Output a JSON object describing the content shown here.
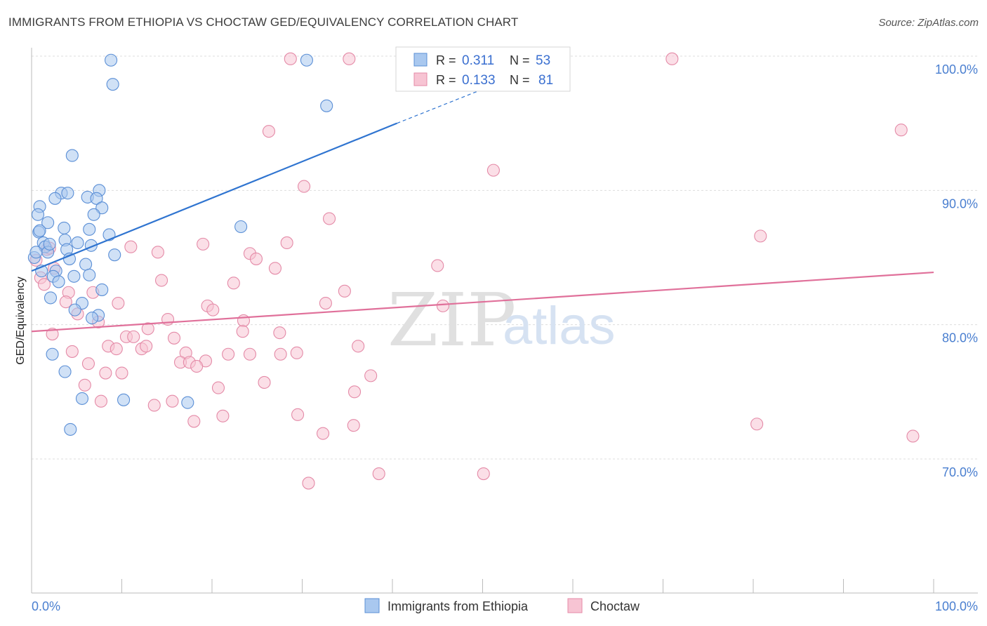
{
  "title": "IMMIGRANTS FROM ETHIOPIA VS CHOCTAW GED/EQUIVALENCY CORRELATION CHART",
  "source": "Source: ZipAtlas.com",
  "watermark": {
    "part1": "ZIP",
    "part2": "atlas"
  },
  "colors": {
    "blue_fill": "#a9c8ef",
    "blue_stroke": "#5b8fd6",
    "blue_line": "#2f74d0",
    "pink_fill": "#f7c4d3",
    "pink_stroke": "#e48aa7",
    "pink_line": "#e0709a",
    "axis_text": "#4a7fd0",
    "grid": "#dddddd"
  },
  "legend_box": {
    "rows": [
      {
        "r_label": "R = ",
        "r_value": "0.311",
        "n_label": "N = ",
        "n_value": "53"
      },
      {
        "r_label": "R = ",
        "r_value": "0.133",
        "n_label": "N = ",
        "n_value": "81"
      }
    ]
  },
  "chart_data": {
    "type": "scatter",
    "title": "IMMIGRANTS FROM ETHIOPIA VS CHOCTAW GED/EQUIVALENCY CORRELATION CHART",
    "xlabel": "",
    "ylabel": "GED/Equivalency",
    "xlim": [
      0,
      100
    ],
    "ylim": [
      60,
      100
    ],
    "x_tick_labels": [
      "0.0%",
      "100.0%"
    ],
    "y_ticks": [
      70,
      80,
      90,
      100
    ],
    "y_tick_labels": [
      "70.0%",
      "80.0%",
      "90.0%",
      "100.0%"
    ],
    "grid": true,
    "legend_position": "bottom",
    "series": [
      {
        "name": "Immigrants from Ethiopia",
        "R": 0.311,
        "N": 53,
        "trend": {
          "x": [
            0,
            40.5
          ],
          "y": [
            84.0,
            95.0
          ],
          "dashed_to": [
            51,
            97.8
          ]
        },
        "points": [
          [
            8.8,
            99.7
          ],
          [
            30.5,
            99.7
          ],
          [
            9.0,
            97.9
          ],
          [
            32.7,
            96.3
          ],
          [
            4.5,
            92.6
          ],
          [
            3.3,
            89.8
          ],
          [
            4.0,
            89.8
          ],
          [
            7.5,
            90.0
          ],
          [
            6.2,
            89.5
          ],
          [
            2.6,
            89.4
          ],
          [
            7.2,
            89.4
          ],
          [
            0.9,
            88.8
          ],
          [
            7.8,
            88.7
          ],
          [
            0.7,
            88.2
          ],
          [
            6.9,
            88.2
          ],
          [
            1.8,
            87.6
          ],
          [
            3.6,
            87.2
          ],
          [
            6.4,
            87.1
          ],
          [
            0.8,
            86.9
          ],
          [
            8.6,
            86.7
          ],
          [
            23.2,
            87.3
          ],
          [
            1.3,
            86.1
          ],
          [
            3.7,
            86.3
          ],
          [
            5.1,
            86.1
          ],
          [
            1.5,
            85.8
          ],
          [
            6.6,
            85.9
          ],
          [
            3.9,
            85.6
          ],
          [
            1.8,
            85.4
          ],
          [
            9.2,
            85.2
          ],
          [
            0.3,
            85.0
          ],
          [
            4.2,
            84.9
          ],
          [
            6.0,
            84.5
          ],
          [
            2.7,
            84.0
          ],
          [
            4.7,
            83.6
          ],
          [
            2.4,
            83.6
          ],
          [
            6.4,
            83.7
          ],
          [
            3.0,
            83.2
          ],
          [
            7.8,
            82.6
          ],
          [
            2.1,
            82.0
          ],
          [
            5.6,
            81.6
          ],
          [
            4.8,
            81.1
          ],
          [
            7.4,
            80.7
          ],
          [
            6.7,
            80.5
          ],
          [
            2.3,
            77.8
          ],
          [
            3.7,
            76.5
          ],
          [
            5.6,
            74.5
          ],
          [
            10.2,
            74.4
          ],
          [
            17.3,
            74.2
          ],
          [
            4.3,
            72.2
          ],
          [
            0.9,
            87.0
          ],
          [
            2.0,
            86.0
          ],
          [
            1.1,
            84.0
          ],
          [
            0.5,
            85.4
          ]
        ]
      },
      {
        "name": "Choctaw",
        "R": 0.133,
        "N": 81,
        "trend": {
          "x": [
            0,
            100
          ],
          "y": [
            79.5,
            83.9
          ]
        },
        "points": [
          [
            28.7,
            99.8
          ],
          [
            35.2,
            99.8
          ],
          [
            71.0,
            99.8
          ],
          [
            26.3,
            94.4
          ],
          [
            96.4,
            94.5
          ],
          [
            51.2,
            91.5
          ],
          [
            30.2,
            90.3
          ],
          [
            33.0,
            87.9
          ],
          [
            80.8,
            86.6
          ],
          [
            19.0,
            86.0
          ],
          [
            28.3,
            86.1
          ],
          [
            11.0,
            85.8
          ],
          [
            14.0,
            85.4
          ],
          [
            24.2,
            85.3
          ],
          [
            1.7,
            85.6
          ],
          [
            24.9,
            84.9
          ],
          [
            27.0,
            84.2
          ],
          [
            45.0,
            84.4
          ],
          [
            2.5,
            84.2
          ],
          [
            1.0,
            83.5
          ],
          [
            14.4,
            83.3
          ],
          [
            22.4,
            83.1
          ],
          [
            1.4,
            83.0
          ],
          [
            34.7,
            82.5
          ],
          [
            4.1,
            82.4
          ],
          [
            6.8,
            82.4
          ],
          [
            3.8,
            81.7
          ],
          [
            9.6,
            81.6
          ],
          [
            32.6,
            81.6
          ],
          [
            19.5,
            81.4
          ],
          [
            20.1,
            81.1
          ],
          [
            45.6,
            81.4
          ],
          [
            5.1,
            80.8
          ],
          [
            15.1,
            80.4
          ],
          [
            23.5,
            80.3
          ],
          [
            7.4,
            80.2
          ],
          [
            12.9,
            79.7
          ],
          [
            2.3,
            79.3
          ],
          [
            23.4,
            79.5
          ],
          [
            27.5,
            79.4
          ],
          [
            10.5,
            79.1
          ],
          [
            11.3,
            79.1
          ],
          [
            15.8,
            79.0
          ],
          [
            8.5,
            78.4
          ],
          [
            9.4,
            78.2
          ],
          [
            12.2,
            78.2
          ],
          [
            12.7,
            78.4
          ],
          [
            36.2,
            78.4
          ],
          [
            4.5,
            78.0
          ],
          [
            17.1,
            77.9
          ],
          [
            21.8,
            77.8
          ],
          [
            24.2,
            77.8
          ],
          [
            27.6,
            77.8
          ],
          [
            29.4,
            77.9
          ],
          [
            6.3,
            77.1
          ],
          [
            16.5,
            77.2
          ],
          [
            17.5,
            77.2
          ],
          [
            19.3,
            77.3
          ],
          [
            18.3,
            76.9
          ],
          [
            8.2,
            76.4
          ],
          [
            10.0,
            76.4
          ],
          [
            37.6,
            76.2
          ],
          [
            25.8,
            75.7
          ],
          [
            5.9,
            75.5
          ],
          [
            20.7,
            75.3
          ],
          [
            35.8,
            75.0
          ],
          [
            7.7,
            74.3
          ],
          [
            13.6,
            74.0
          ],
          [
            15.6,
            74.3
          ],
          [
            18.0,
            72.8
          ],
          [
            21.2,
            73.2
          ],
          [
            29.5,
            73.3
          ],
          [
            35.7,
            72.5
          ],
          [
            80.4,
            72.6
          ],
          [
            32.3,
            71.9
          ],
          [
            97.7,
            71.7
          ],
          [
            30.7,
            68.2
          ],
          [
            38.5,
            68.9
          ],
          [
            50.1,
            68.9
          ],
          [
            0.5,
            84.8
          ],
          [
            2.0,
            85.7
          ]
        ]
      }
    ]
  }
}
